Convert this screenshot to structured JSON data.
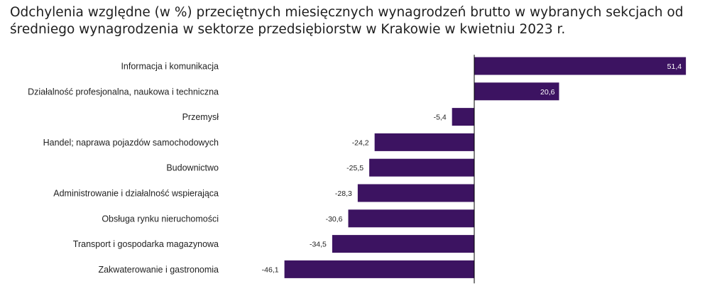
{
  "title": {
    "line1": "Odchylenia względne (w %) przeciętnych miesięcznych wynagrodzeń brutto w wybranych sekcjach od",
    "line2": "średniego wynagrodzenia w sektorze przedsiębiorstw w Krakowie w kwietniu 2023 r."
  },
  "colors": {
    "bar": "#3c1361",
    "axis": "#000000",
    "label_inside": "#ffffff",
    "label_outside": "#222222"
  },
  "chart_data": {
    "type": "bar",
    "orientation": "horizontal",
    "categories": [
      "Informacja i komunikacja",
      "Działalność profesjonalna, naukowa i techniczna",
      "Przemysł",
      "Handel; naprawa pojazdów samochodowych",
      "Budownictwo",
      "Administrowanie i działalność wspierająca",
      "Obsługa rynku nieruchomości",
      "Transport i gospodarka magazynowa",
      "Zakwaterowanie i gastronomia"
    ],
    "values": [
      51.4,
      20.6,
      -5.4,
      -24.2,
      -25.5,
      -28.3,
      -30.6,
      -34.5,
      -46.1
    ],
    "value_labels": [
      "51,4",
      "20,6",
      "-5,4",
      "-24,2",
      "-25,5",
      "-28,3",
      "-30,6",
      "-34,5",
      "-46,1"
    ],
    "title": "Odchylenia względne (w %) przeciętnych miesięcznych wynagrodzeń brutto w wybranych sekcjach od średniego wynagrodzenia w sektorze przedsiębiorstw w Krakowie w kwietniu 2023 r.",
    "xlabel": "",
    "ylabel": "",
    "grid": false,
    "legend": "none"
  }
}
